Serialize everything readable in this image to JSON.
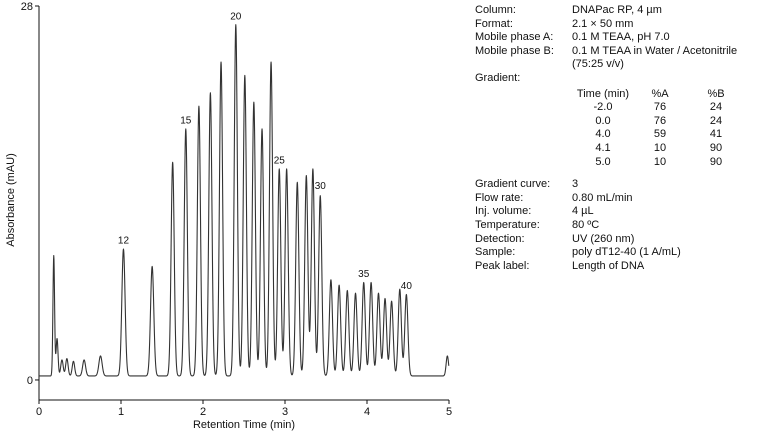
{
  "chart_data": {
    "type": "line",
    "xlabel": "Retention Time (min)",
    "ylabel": "Absorbance (mAU)",
    "xlim": [
      0,
      5
    ],
    "ylim": [
      -1.5,
      28
    ],
    "x_ticks": [
      "0",
      "1",
      "2",
      "3",
      "4",
      "5"
    ],
    "y_ticks": [
      "0",
      "28"
    ],
    "grid": false,
    "legend": "none",
    "baseline_mAU": 0.3,
    "peaks": [
      {
        "t": 0.18,
        "h": 9.0,
        "w": 0.01
      },
      {
        "t": 0.22,
        "h": 2.8,
        "w": 0.012
      },
      {
        "t": 0.28,
        "h": 1.2,
        "w": 0.015
      },
      {
        "t": 0.34,
        "h": 1.3,
        "w": 0.015
      },
      {
        "t": 0.42,
        "h": 1.1,
        "w": 0.015
      },
      {
        "t": 0.55,
        "h": 1.2,
        "w": 0.018
      },
      {
        "t": 0.75,
        "h": 1.5,
        "w": 0.02
      },
      {
        "t": 1.03,
        "h": 9.5,
        "w": 0.02
      },
      {
        "t": 1.38,
        "h": 8.2,
        "w": 0.02
      },
      {
        "t": 1.63,
        "h": 16.0,
        "w": 0.019
      },
      {
        "t": 1.79,
        "h": 18.5,
        "w": 0.019
      },
      {
        "t": 1.95,
        "h": 20.2,
        "w": 0.019
      },
      {
        "t": 2.09,
        "h": 21.2,
        "w": 0.019
      },
      {
        "t": 2.22,
        "h": 23.5,
        "w": 0.019
      },
      {
        "t": 2.4,
        "h": 26.3,
        "w": 0.019
      },
      {
        "t": 2.51,
        "h": 22.5,
        "w": 0.019
      },
      {
        "t": 2.62,
        "h": 20.5,
        "w": 0.019
      },
      {
        "t": 2.72,
        "h": 18.5,
        "w": 0.019
      },
      {
        "t": 2.83,
        "h": 23.5,
        "w": 0.019
      },
      {
        "t": 2.93,
        "h": 15.5,
        "w": 0.019
      },
      {
        "t": 3.02,
        "h": 15.5,
        "w": 0.019
      },
      {
        "t": 3.15,
        "h": 14.5,
        "w": 0.019
      },
      {
        "t": 3.26,
        "h": 15.0,
        "w": 0.019
      },
      {
        "t": 3.34,
        "h": 15.5,
        "w": 0.019
      },
      {
        "t": 3.43,
        "h": 13.5,
        "w": 0.019
      },
      {
        "t": 3.56,
        "h": 7.2,
        "w": 0.019
      },
      {
        "t": 3.66,
        "h": 6.8,
        "w": 0.019
      },
      {
        "t": 3.76,
        "h": 6.4,
        "w": 0.019
      },
      {
        "t": 3.86,
        "h": 6.2,
        "w": 0.019
      },
      {
        "t": 3.96,
        "h": 7.0,
        "w": 0.019
      },
      {
        "t": 4.05,
        "h": 7.0,
        "w": 0.019
      },
      {
        "t": 4.14,
        "h": 6.2,
        "w": 0.019
      },
      {
        "t": 4.22,
        "h": 5.8,
        "w": 0.019
      },
      {
        "t": 4.3,
        "h": 5.6,
        "w": 0.019
      },
      {
        "t": 4.4,
        "h": 6.5,
        "w": 0.019
      },
      {
        "t": 4.48,
        "h": 6.1,
        "w": 0.019
      },
      {
        "t": 4.98,
        "h": 1.5,
        "w": 0.015
      }
    ],
    "annotations": [
      {
        "text": "12",
        "t": 1.03,
        "y": 10.2
      },
      {
        "text": "15",
        "t": 1.79,
        "y": 19.2
      },
      {
        "text": "20",
        "t": 2.4,
        "y": 27.0
      },
      {
        "text": "25",
        "t": 2.93,
        "y": 16.2
      },
      {
        "text": "30",
        "t": 3.43,
        "y": 14.3
      },
      {
        "text": "35",
        "t": 3.96,
        "y": 7.7
      },
      {
        "text": "40",
        "t": 4.48,
        "y": 6.8
      }
    ],
    "line_color": "#333333"
  },
  "conditions": {
    "column": {
      "label": "Column:",
      "value": "DNAPac RP, 4 µm"
    },
    "format": {
      "label": "Format:",
      "value": "2.1 × 50 mm"
    },
    "mpa": {
      "label": "Mobile phase A:",
      "value": "0.1 M TEAA, pH 7.0"
    },
    "mpb": {
      "label": "Mobile phase B:",
      "value": "0.1 M TEAA in Water / Acetonitrile",
      "value2": "(75:25 v/v)"
    },
    "gradient": {
      "label": "Gradient:",
      "headers": [
        "Time (min)",
        "%A",
        "%B"
      ],
      "rows": [
        [
          "-2.0",
          "76",
          "24"
        ],
        [
          "0.0",
          "76",
          "24"
        ],
        [
          "4.0",
          "59",
          "41"
        ],
        [
          "4.1",
          "10",
          "90"
        ],
        [
          "5.0",
          "10",
          "90"
        ]
      ]
    },
    "curve": {
      "label": "Gradient curve:",
      "value": "3"
    },
    "flow": {
      "label": "Flow rate:",
      "value": "0.80 mL/min"
    },
    "inj": {
      "label": "Inj. volume:",
      "value": "4 µL"
    },
    "temp": {
      "label": "Temperature:",
      "value": "80 ºC"
    },
    "detection": {
      "label": "Detection:",
      "value": "UV (260 nm)"
    },
    "sample": {
      "label": "Sample:",
      "value": "poly dT12-40 (1 A/mL)"
    },
    "peak_label": {
      "label": "Peak label:",
      "value": "Length of DNA"
    }
  }
}
